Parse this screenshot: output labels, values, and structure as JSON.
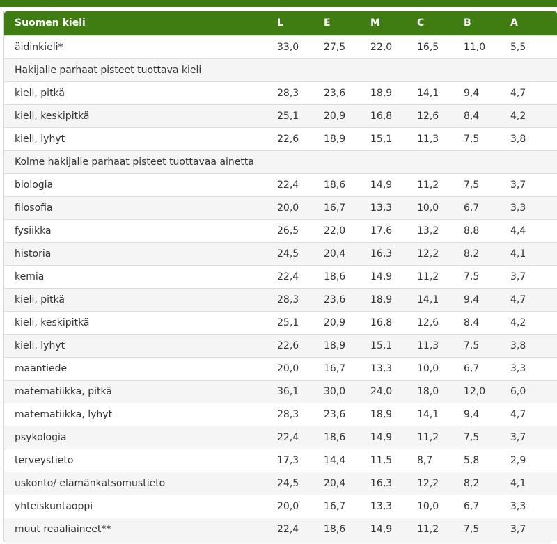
{
  "table": {
    "headers": [
      "Suomen kieli",
      "L",
      "E",
      "M",
      "C",
      "B",
      "A"
    ],
    "rows": [
      {
        "type": "data",
        "label": "äidinkieli*",
        "values": [
          "33,0",
          "27,5",
          "22,0",
          "16,5",
          "11,0",
          "5,5"
        ]
      },
      {
        "type": "section",
        "label": "Hakijalle parhaat pisteet tuottava kieli"
      },
      {
        "type": "data",
        "label": "kieli, pitkä",
        "values": [
          "28,3",
          "23,6",
          "18,9",
          "14,1",
          "9,4",
          "4,7"
        ]
      },
      {
        "type": "data",
        "label": "kieli, keskipitkä",
        "values": [
          "25,1",
          "20,9",
          "16,8",
          "12,6",
          "8,4",
          "4,2"
        ]
      },
      {
        "type": "data",
        "label": "kieli, lyhyt",
        "values": [
          "22,6",
          "18,9",
          "15,1",
          "11,3",
          "7,5",
          "3,8"
        ]
      },
      {
        "type": "section",
        "label": "Kolme hakijalle parhaat pisteet tuottavaa ainetta"
      },
      {
        "type": "data",
        "label": "biologia",
        "values": [
          "22,4",
          "18,6",
          "14,9",
          "11,2",
          "7,5",
          "3,7"
        ]
      },
      {
        "type": "data",
        "label": "filosofia",
        "values": [
          "20,0",
          "16,7",
          "13,3",
          "10,0",
          "6,7",
          "3,3"
        ]
      },
      {
        "type": "data",
        "label": "fysiikka",
        "values": [
          "26,5",
          "22,0",
          "17,6",
          "13,2",
          "8,8",
          "4,4"
        ]
      },
      {
        "type": "data",
        "label": "historia",
        "values": [
          "24,5",
          "20,4",
          "16,3",
          "12,2",
          "8,2",
          "4,1"
        ]
      },
      {
        "type": "data",
        "label": "kemia",
        "values": [
          "22,4",
          "18,6",
          "14,9",
          "11,2",
          "7,5",
          "3,7"
        ]
      },
      {
        "type": "data",
        "label": "kieli, pitkä",
        "values": [
          "28,3",
          "23,6",
          "18,9",
          "14,1",
          "9,4",
          "4,7"
        ]
      },
      {
        "type": "data",
        "label": "kieli, keskipitkä",
        "values": [
          "25,1",
          "20,9",
          "16,8",
          "12,6",
          "8,4",
          "4,2"
        ]
      },
      {
        "type": "data",
        "label": "kieli, lyhyt",
        "values": [
          "22,6",
          "18,9",
          "15,1",
          "11,3",
          "7,5",
          "3,8"
        ]
      },
      {
        "type": "data",
        "label": "maantiede",
        "values": [
          "20,0",
          "16,7",
          "13,3",
          "10,0",
          "6,7",
          "3,3"
        ]
      },
      {
        "type": "data",
        "label": "matematiikka, pitkä",
        "values": [
          "36,1",
          "30,0",
          "24,0",
          "18,0",
          "12,0",
          "6,0"
        ]
      },
      {
        "type": "data",
        "label": "matematiikka, lyhyt",
        "values": [
          "28,3",
          "23,6",
          "18,9",
          "14,1",
          "9,4",
          "4,7"
        ]
      },
      {
        "type": "data",
        "label": "psykologia",
        "values": [
          "22,4",
          "18,6",
          "14,9",
          "11,2",
          "7,5",
          "3,7"
        ]
      },
      {
        "type": "data",
        "label": "terveystieto",
        "values": [
          "17,3",
          "14,4",
          "11,5",
          "8,7",
          "5,8",
          "2,9"
        ]
      },
      {
        "type": "data",
        "label": "uskonto/ elämänkatsomustieto",
        "values": [
          "24,5",
          "20,4",
          "16,3",
          "12,2",
          "8,2",
          "4,1"
        ]
      },
      {
        "type": "data",
        "label": "yhteiskuntaoppi",
        "values": [
          "20,0",
          "16,7",
          "13,3",
          "10,0",
          "6,7",
          "3,3"
        ]
      },
      {
        "type": "data",
        "label": "muut reaaliaineet**",
        "values": [
          "22,4",
          "18,6",
          "14,9",
          "11,2",
          "7,5",
          "3,7"
        ]
      }
    ]
  },
  "colors": {
    "header_green": "#3f7c12",
    "topbar_green": "#3d7a12",
    "stripe": "#f5f5f5"
  }
}
